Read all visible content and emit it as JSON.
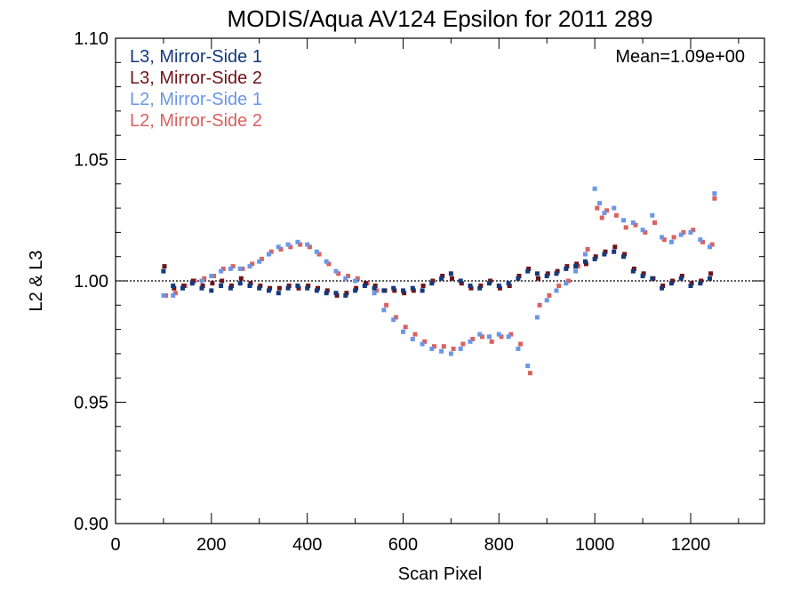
{
  "chart_data": {
    "type": "scatter",
    "title": "MODIS/Aqua AV124 Epsilon for 2011 289",
    "xlabel": "Scan Pixel",
    "ylabel": "L2 & L3",
    "xlim": [
      0,
      1354
    ],
    "ylim": [
      0.9,
      1.1
    ],
    "x_ticks": [
      0,
      200,
      400,
      600,
      800,
      1000,
      1200
    ],
    "x_tick_labels": [
      "0",
      "200",
      "400",
      "600",
      "800",
      "1000",
      "1200"
    ],
    "y_ticks": [
      0.9,
      0.95,
      1.0,
      1.05,
      1.1
    ],
    "y_tick_labels": [
      "0.90",
      "0.95",
      "1.00",
      "1.05",
      "1.10"
    ],
    "reference_line": 1.0,
    "legend_position": "top-left",
    "annotation": {
      "text": "Mean=1.09e+00",
      "position": "top-right",
      "color": "#d9625f"
    },
    "series": [
      {
        "name": "L3, Mirror-Side 1",
        "color": "#143a7c",
        "x": [
          100,
          120,
          140,
          160,
          180,
          200,
          220,
          240,
          260,
          280,
          300,
          320,
          340,
          360,
          380,
          400,
          420,
          440,
          460,
          480,
          500,
          520,
          540,
          560,
          580,
          600,
          620,
          640,
          660,
          680,
          700,
          720,
          740,
          760,
          780,
          800,
          820,
          840,
          860,
          880,
          900,
          920,
          940,
          960,
          980,
          1000,
          1020,
          1040,
          1060,
          1080,
          1100,
          1120,
          1140,
          1160,
          1180,
          1200,
          1220,
          1240
        ],
        "y": [
          1.004,
          0.998,
          0.997,
          0.999,
          0.997,
          0.996,
          0.998,
          0.997,
          0.999,
          0.998,
          0.997,
          0.996,
          0.995,
          0.997,
          0.998,
          0.997,
          0.996,
          0.995,
          0.995,
          0.994,
          0.996,
          0.998,
          0.997,
          0.996,
          0.997,
          0.996,
          0.997,
          0.996,
          0.999,
          1.001,
          1.003,
          1.0,
          0.998,
          0.997,
          0.999,
          0.998,
          0.999,
          1.001,
          1.004,
          1.003,
          1.002,
          1.003,
          1.005,
          1.006,
          1.008,
          1.009,
          1.011,
          1.012,
          1.01,
          1.004,
          1.002,
          1.001,
          0.997,
          0.999,
          1.001,
          0.998,
          0.999,
          1.001
        ]
      },
      {
        "name": "L3, Mirror-Side 2",
        "color": "#6e1419",
        "x": [
          102,
          122,
          142,
          162,
          182,
          202,
          222,
          242,
          262,
          282,
          302,
          322,
          342,
          362,
          382,
          402,
          422,
          442,
          462,
          482,
          502,
          522,
          542,
          562,
          582,
          602,
          622,
          642,
          662,
          682,
          702,
          722,
          742,
          762,
          782,
          802,
          822,
          842,
          862,
          882,
          902,
          922,
          942,
          962,
          982,
          1002,
          1022,
          1042,
          1062,
          1082,
          1102,
          1122,
          1142,
          1162,
          1182,
          1202,
          1222,
          1242
        ],
        "y": [
          1.006,
          0.997,
          0.998,
          1.0,
          0.998,
          0.999,
          1.0,
          0.998,
          1.001,
          0.999,
          0.998,
          0.997,
          0.997,
          0.998,
          0.997,
          0.998,
          0.997,
          0.996,
          0.994,
          0.995,
          0.997,
          0.999,
          0.998,
          0.996,
          0.996,
          0.995,
          0.996,
          0.998,
          1.0,
          1.002,
          1.001,
          0.999,
          0.997,
          0.998,
          1.0,
          0.997,
          0.998,
          1.002,
          1.005,
          1.001,
          1.003,
          1.004,
          1.006,
          1.007,
          1.007,
          1.01,
          1.012,
          1.014,
          1.011,
          1.005,
          1.003,
          1.001,
          0.998,
          1.0,
          1.002,
          0.999,
          1.0,
          1.003
        ]
      },
      {
        "name": "L2, Mirror-Side 1",
        "color": "#6a97e8",
        "x": [
          100,
          120,
          140,
          160,
          180,
          200,
          220,
          240,
          260,
          280,
          300,
          320,
          340,
          360,
          380,
          400,
          420,
          440,
          460,
          480,
          500,
          520,
          540,
          560,
          580,
          600,
          620,
          640,
          660,
          680,
          700,
          720,
          740,
          760,
          780,
          800,
          820,
          840,
          860,
          880,
          900,
          920,
          940,
          960,
          980,
          1000,
          1010,
          1020,
          1040,
          1060,
          1080,
          1100,
          1120,
          1140,
          1160,
          1180,
          1200,
          1220,
          1240,
          1250
        ],
        "y": [
          0.994,
          0.994,
          0.997,
          0.999,
          1.0,
          1.002,
          1.004,
          1.005,
          1.005,
          1.006,
          1.008,
          1.011,
          1.014,
          1.015,
          1.016,
          1.015,
          1.012,
          1.008,
          1.004,
          1.001,
          1.0,
          0.998,
          0.995,
          0.988,
          0.984,
          0.979,
          0.976,
          0.974,
          0.972,
          0.971,
          0.97,
          0.972,
          0.975,
          0.978,
          0.977,
          0.978,
          0.977,
          0.972,
          0.965,
          0.985,
          0.992,
          0.996,
          0.999,
          1.004,
          1.011,
          1.038,
          1.032,
          1.028,
          1.03,
          1.025,
          1.024,
          1.021,
          1.027,
          1.018,
          1.016,
          1.019,
          1.02,
          1.017,
          1.014,
          1.036
        ]
      },
      {
        "name": "L2, Mirror-Side 2",
        "color": "#d9625f",
        "x": [
          105,
          125,
          145,
          165,
          185,
          205,
          225,
          245,
          265,
          285,
          305,
          325,
          345,
          365,
          385,
          405,
          425,
          445,
          465,
          485,
          505,
          525,
          545,
          565,
          585,
          605,
          625,
          645,
          665,
          685,
          705,
          725,
          745,
          765,
          785,
          805,
          825,
          845,
          865,
          885,
          905,
          925,
          945,
          965,
          985,
          1005,
          1015,
          1025,
          1045,
          1065,
          1085,
          1105,
          1125,
          1145,
          1165,
          1185,
          1205,
          1225,
          1245,
          1250
        ],
        "y": [
          0.994,
          0.995,
          0.998,
          1.0,
          1.001,
          1.002,
          1.005,
          1.006,
          1.005,
          1.007,
          1.009,
          1.012,
          1.013,
          1.014,
          1.015,
          1.014,
          1.011,
          1.007,
          1.003,
          1.002,
          1.001,
          0.999,
          0.996,
          0.99,
          0.985,
          0.981,
          0.978,
          0.975,
          0.973,
          0.973,
          0.972,
          0.974,
          0.976,
          0.977,
          0.975,
          0.977,
          0.978,
          0.974,
          0.962,
          0.99,
          0.994,
          0.998,
          1.0,
          1.006,
          1.013,
          1.03,
          1.026,
          1.029,
          1.027,
          1.022,
          1.023,
          1.02,
          1.024,
          1.017,
          1.018,
          1.02,
          1.021,
          1.016,
          1.015,
          1.034
        ]
      }
    ]
  }
}
